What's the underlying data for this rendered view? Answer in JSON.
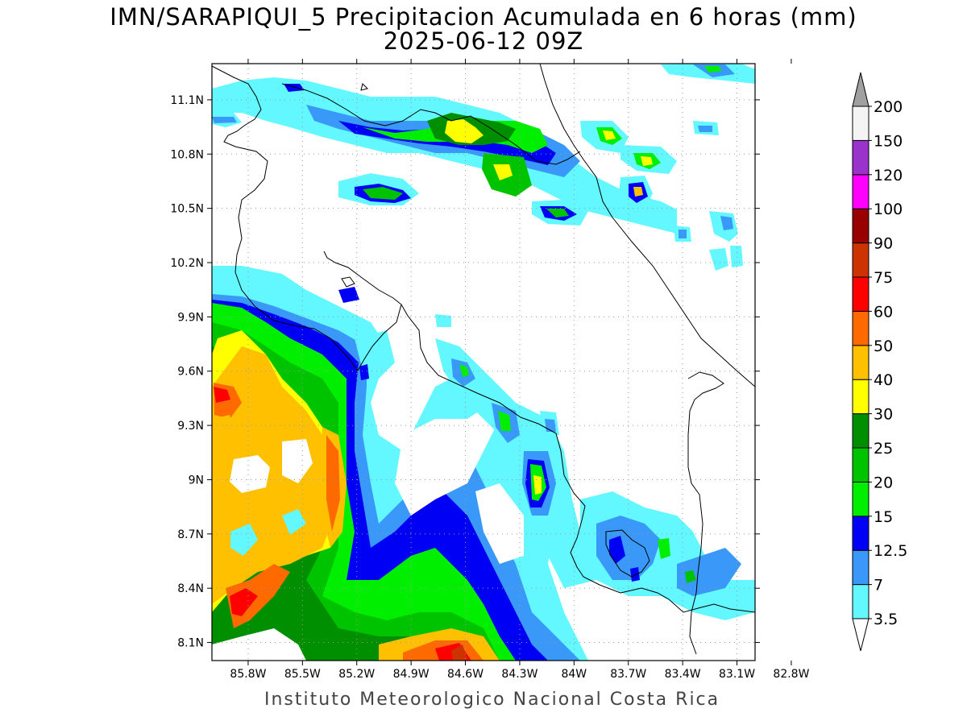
{
  "title_line1": "IMN/SARAPIQUI_5 Precipitacion Acumulada en 6 horas (mm)",
  "title_line2": "2025-06-12 09Z",
  "footer": "Instituto Meteorologico Nacional Costa Rica",
  "map": {
    "lat_range": [
      8.0,
      11.3
    ],
    "lon_range": [
      -86.0,
      -83.0
    ],
    "lat_ticks": [
      {
        "value": 11.1,
        "label": "11.1N"
      },
      {
        "value": 10.8,
        "label": "10.8N"
      },
      {
        "value": 10.5,
        "label": "10.5N"
      },
      {
        "value": 10.2,
        "label": "10.2N"
      },
      {
        "value": 9.9,
        "label": "9.9N"
      },
      {
        "value": 9.6,
        "label": "9.6N"
      },
      {
        "value": 9.3,
        "label": "9.3N"
      },
      {
        "value": 9.0,
        "label": "9N"
      },
      {
        "value": 8.7,
        "label": "8.7N"
      },
      {
        "value": 8.4,
        "label": "8.4N"
      },
      {
        "value": 8.1,
        "label": "8.1N"
      }
    ],
    "lon_ticks": [
      {
        "value": -85.8,
        "label": "85.8W"
      },
      {
        "value": -85.5,
        "label": "85.5W"
      },
      {
        "value": -85.2,
        "label": "85.2W"
      },
      {
        "value": -84.9,
        "label": "84.9W"
      },
      {
        "value": -84.6,
        "label": "84.6W"
      },
      {
        "value": -84.3,
        "label": "84.3W"
      },
      {
        "value": -84.0,
        "label": "84W"
      },
      {
        "value": -83.7,
        "label": "83.7W"
      },
      {
        "value": -83.4,
        "label": "83.4W"
      },
      {
        "value": -83.1,
        "label": "83.1W"
      },
      {
        "value": -82.8,
        "label": "82.8W"
      }
    ],
    "grid": true
  },
  "colorbar": {
    "levels": [
      "3.5",
      "7",
      "12.5",
      "15",
      "20",
      "25",
      "30",
      "40",
      "50",
      "60",
      "75",
      "90",
      "100",
      "120",
      "150",
      "200"
    ],
    "colors": [
      "#63f8ff",
      "#3a99f8",
      "#0000f4",
      "#00ef00",
      "#00c300",
      "#008f00",
      "#ffff00",
      "#ffc000",
      "#ff6a00",
      "#ff0000",
      "#cc3300",
      "#990000",
      "#ff00ff",
      "#9933cc",
      "#f4f4f4",
      "#a0a0a0"
    ]
  },
  "field_colors": {
    "c1": "#63f8ff",
    "c2": "#3a99f8",
    "c3": "#0000f4",
    "c4": "#00ef00",
    "c5": "#00c300",
    "c6": "#008f00",
    "c7": "#ffff00",
    "c8": "#ffc000",
    "c9": "#ff6a00",
    "c10": "#ff0000",
    "c11": "#cc3300"
  }
}
